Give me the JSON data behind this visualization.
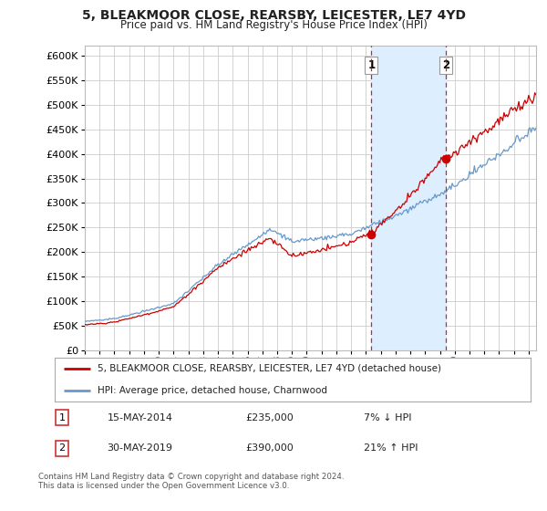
{
  "title": "5, BLEAKMOOR CLOSE, REARSBY, LEICESTER, LE7 4YD",
  "subtitle": "Price paid vs. HM Land Registry's House Price Index (HPI)",
  "ylabel_ticks": [
    0,
    50000,
    100000,
    150000,
    200000,
    250000,
    300000,
    350000,
    400000,
    450000,
    500000,
    550000,
    600000
  ],
  "ylim": [
    0,
    620000
  ],
  "xlim_start": 1995.0,
  "xlim_end": 2025.5,
  "transaction1_x": 2014.37,
  "transaction1_y": 235000,
  "transaction2_x": 2019.41,
  "transaction2_y": 390000,
  "shade_x1": 2014.37,
  "shade_x2": 2019.41,
  "line1_label": "5, BLEAKMOOR CLOSE, REARSBY, LEICESTER, LE7 4YD (detached house)",
  "line2_label": "HPI: Average price, detached house, Charnwood",
  "table_row1_num": "1",
  "table_row1_date": "15-MAY-2014",
  "table_row1_price": "£235,000",
  "table_row1_hpi": "7% ↓ HPI",
  "table_row2_num": "2",
  "table_row2_date": "30-MAY-2019",
  "table_row2_price": "£390,000",
  "table_row2_hpi": "21% ↑ HPI",
  "footnote": "Contains HM Land Registry data © Crown copyright and database right 2024.\nThis data is licensed under the Open Government Licence v3.0.",
  "red_color": "#cc0000",
  "blue_color": "#6699cc",
  "shade_color": "#ddeeff",
  "bg_color": "#ffffff",
  "grid_color": "#cccccc"
}
